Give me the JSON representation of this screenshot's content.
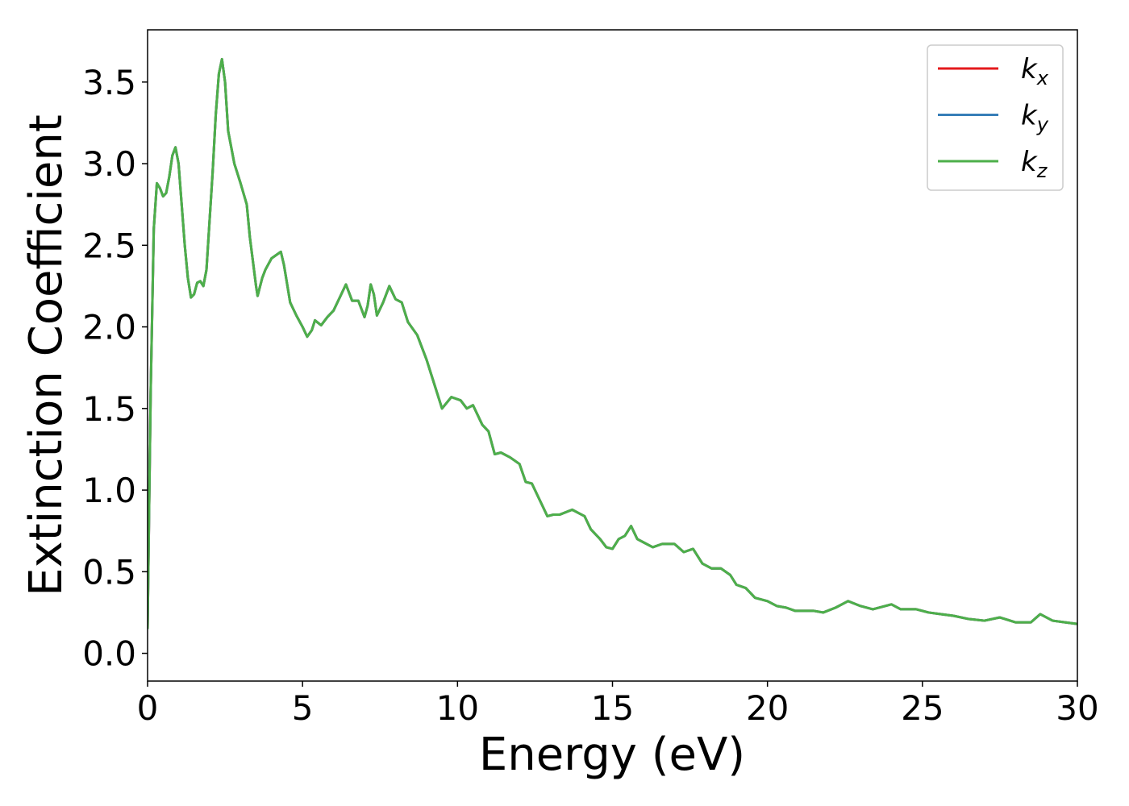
{
  "chart_data": {
    "type": "line",
    "xlabel": "Energy (eV)",
    "ylabel": "Extinction Coefficient",
    "x": [
      0,
      0.1,
      0.2,
      0.3,
      0.4,
      0.5,
      0.6,
      0.7,
      0.8,
      0.9,
      1.0,
      1.1,
      1.2,
      1.3,
      1.4,
      1.5,
      1.6,
      1.7,
      1.8,
      1.9,
      2.0,
      2.1,
      2.2,
      2.3,
      2.4,
      2.5,
      2.6,
      2.8,
      3.0,
      3.2,
      3.3,
      3.5,
      3.55,
      3.7,
      3.8,
      4.0,
      4.3,
      4.4,
      4.6,
      4.8,
      5.0,
      5.15,
      5.3,
      5.4,
      5.6,
      5.8,
      6.0,
      6.2,
      6.4,
      6.6,
      6.8,
      7.0,
      7.1,
      7.2,
      7.3,
      7.4,
      7.6,
      7.8,
      8.0,
      8.2,
      8.4,
      8.7,
      9.0,
      9.2,
      9.5,
      9.8,
      10.1,
      10.3,
      10.5,
      10.8,
      11.0,
      11.2,
      11.4,
      11.7,
      12.0,
      12.2,
      12.4,
      12.7,
      12.9,
      13.1,
      13.3,
      13.7,
      13.9,
      14.1,
      14.3,
      14.6,
      14.8,
      15.0,
      15.2,
      15.4,
      15.6,
      15.8,
      16.0,
      16.3,
      16.6,
      17.0,
      17.3,
      17.6,
      17.9,
      18.2,
      18.5,
      18.8,
      19.0,
      19.3,
      19.6,
      20.0,
      20.3,
      20.6,
      20.9,
      21.5,
      21.8,
      22.2,
      22.6,
      23.0,
      23.4,
      24.0,
      24.3,
      24.8,
      25.2,
      25.6,
      26.0,
      26.5,
      27.0,
      27.5,
      28.0,
      28.5,
      28.8,
      29.2,
      29.6,
      30.0
    ],
    "series": [
      {
        "name": "kx",
        "color": "#e41a1c",
        "values": [
          0.15,
          1.6,
          2.6,
          2.88,
          2.85,
          2.8,
          2.82,
          2.92,
          3.05,
          3.1,
          3.0,
          2.75,
          2.5,
          2.3,
          2.18,
          2.2,
          2.27,
          2.28,
          2.25,
          2.35,
          2.65,
          2.95,
          3.3,
          3.55,
          3.64,
          3.5,
          3.2,
          3.0,
          2.88,
          2.75,
          2.55,
          2.25,
          2.19,
          2.3,
          2.35,
          2.42,
          2.46,
          2.38,
          2.15,
          2.07,
          2.0,
          1.94,
          1.98,
          2.04,
          2.01,
          2.06,
          2.1,
          2.18,
          2.26,
          2.16,
          2.16,
          2.06,
          2.13,
          2.26,
          2.2,
          2.07,
          2.15,
          2.25,
          2.17,
          2.15,
          2.03,
          1.95,
          1.8,
          1.68,
          1.5,
          1.57,
          1.55,
          1.5,
          1.52,
          1.4,
          1.36,
          1.22,
          1.23,
          1.2,
          1.16,
          1.05,
          1.04,
          0.92,
          0.84,
          0.85,
          0.85,
          0.88,
          0.86,
          0.84,
          0.76,
          0.7,
          0.65,
          0.64,
          0.7,
          0.72,
          0.78,
          0.7,
          0.68,
          0.65,
          0.67,
          0.67,
          0.62,
          0.64,
          0.55,
          0.52,
          0.52,
          0.48,
          0.42,
          0.4,
          0.34,
          0.32,
          0.29,
          0.28,
          0.26,
          0.26,
          0.25,
          0.28,
          0.32,
          0.29,
          0.27,
          0.3,
          0.27,
          0.27,
          0.25,
          0.24,
          0.23,
          0.21,
          0.2,
          0.22,
          0.19,
          0.19,
          0.24,
          0.2,
          0.19,
          0.18
        ]
      },
      {
        "name": "ky",
        "color": "#377eb8",
        "values": [
          0.15,
          1.6,
          2.6,
          2.88,
          2.85,
          2.8,
          2.82,
          2.92,
          3.05,
          3.1,
          3.0,
          2.75,
          2.5,
          2.3,
          2.18,
          2.2,
          2.27,
          2.28,
          2.25,
          2.35,
          2.65,
          2.95,
          3.3,
          3.55,
          3.64,
          3.5,
          3.2,
          3.0,
          2.88,
          2.75,
          2.55,
          2.25,
          2.19,
          2.3,
          2.35,
          2.42,
          2.46,
          2.38,
          2.15,
          2.07,
          2.0,
          1.94,
          1.98,
          2.04,
          2.01,
          2.06,
          2.1,
          2.18,
          2.26,
          2.16,
          2.16,
          2.06,
          2.13,
          2.26,
          2.2,
          2.07,
          2.15,
          2.25,
          2.17,
          2.15,
          2.03,
          1.95,
          1.8,
          1.68,
          1.5,
          1.57,
          1.55,
          1.5,
          1.52,
          1.4,
          1.36,
          1.22,
          1.23,
          1.2,
          1.16,
          1.05,
          1.04,
          0.92,
          0.84,
          0.85,
          0.85,
          0.88,
          0.86,
          0.84,
          0.76,
          0.7,
          0.65,
          0.64,
          0.7,
          0.72,
          0.78,
          0.7,
          0.68,
          0.65,
          0.67,
          0.67,
          0.62,
          0.64,
          0.55,
          0.52,
          0.52,
          0.48,
          0.42,
          0.4,
          0.34,
          0.32,
          0.29,
          0.28,
          0.26,
          0.26,
          0.25,
          0.28,
          0.32,
          0.29,
          0.27,
          0.3,
          0.27,
          0.27,
          0.25,
          0.24,
          0.23,
          0.21,
          0.2,
          0.22,
          0.19,
          0.19,
          0.24,
          0.2,
          0.19,
          0.18
        ]
      },
      {
        "name": "kz",
        "color": "#4daf4a",
        "values": [
          0.15,
          1.6,
          2.6,
          2.88,
          2.85,
          2.8,
          2.82,
          2.92,
          3.05,
          3.1,
          3.0,
          2.75,
          2.5,
          2.3,
          2.18,
          2.2,
          2.27,
          2.28,
          2.25,
          2.35,
          2.65,
          2.95,
          3.3,
          3.55,
          3.64,
          3.5,
          3.2,
          3.0,
          2.88,
          2.75,
          2.55,
          2.25,
          2.19,
          2.3,
          2.35,
          2.42,
          2.46,
          2.38,
          2.15,
          2.07,
          2.0,
          1.94,
          1.98,
          2.04,
          2.01,
          2.06,
          2.1,
          2.18,
          2.26,
          2.16,
          2.16,
          2.06,
          2.13,
          2.26,
          2.2,
          2.07,
          2.15,
          2.25,
          2.17,
          2.15,
          2.03,
          1.95,
          1.8,
          1.68,
          1.5,
          1.57,
          1.55,
          1.5,
          1.52,
          1.4,
          1.36,
          1.22,
          1.23,
          1.2,
          1.16,
          1.05,
          1.04,
          0.92,
          0.84,
          0.85,
          0.85,
          0.88,
          0.86,
          0.84,
          0.76,
          0.7,
          0.65,
          0.64,
          0.7,
          0.72,
          0.78,
          0.7,
          0.68,
          0.65,
          0.67,
          0.67,
          0.62,
          0.64,
          0.55,
          0.52,
          0.52,
          0.48,
          0.42,
          0.4,
          0.34,
          0.32,
          0.29,
          0.28,
          0.26,
          0.26,
          0.25,
          0.28,
          0.32,
          0.29,
          0.27,
          0.3,
          0.27,
          0.27,
          0.25,
          0.24,
          0.23,
          0.21,
          0.2,
          0.22,
          0.19,
          0.19,
          0.24,
          0.2,
          0.19,
          0.18
        ]
      }
    ],
    "xlim": [
      0,
      30
    ],
    "xticks": [
      0,
      5,
      10,
      15,
      20,
      25,
      30
    ],
    "ylim": [
      -0.17,
      3.82
    ],
    "yticks": [
      {
        "value": 0,
        "label": "0.0"
      },
      0.5,
      {
        "value": 1,
        "label": "1.0"
      },
      1.5,
      {
        "value": 2,
        "label": "2.0"
      },
      2.5,
      {
        "value": 3,
        "label": "3.0"
      },
      3.5
    ],
    "legend": "upper right",
    "grid": false
  }
}
